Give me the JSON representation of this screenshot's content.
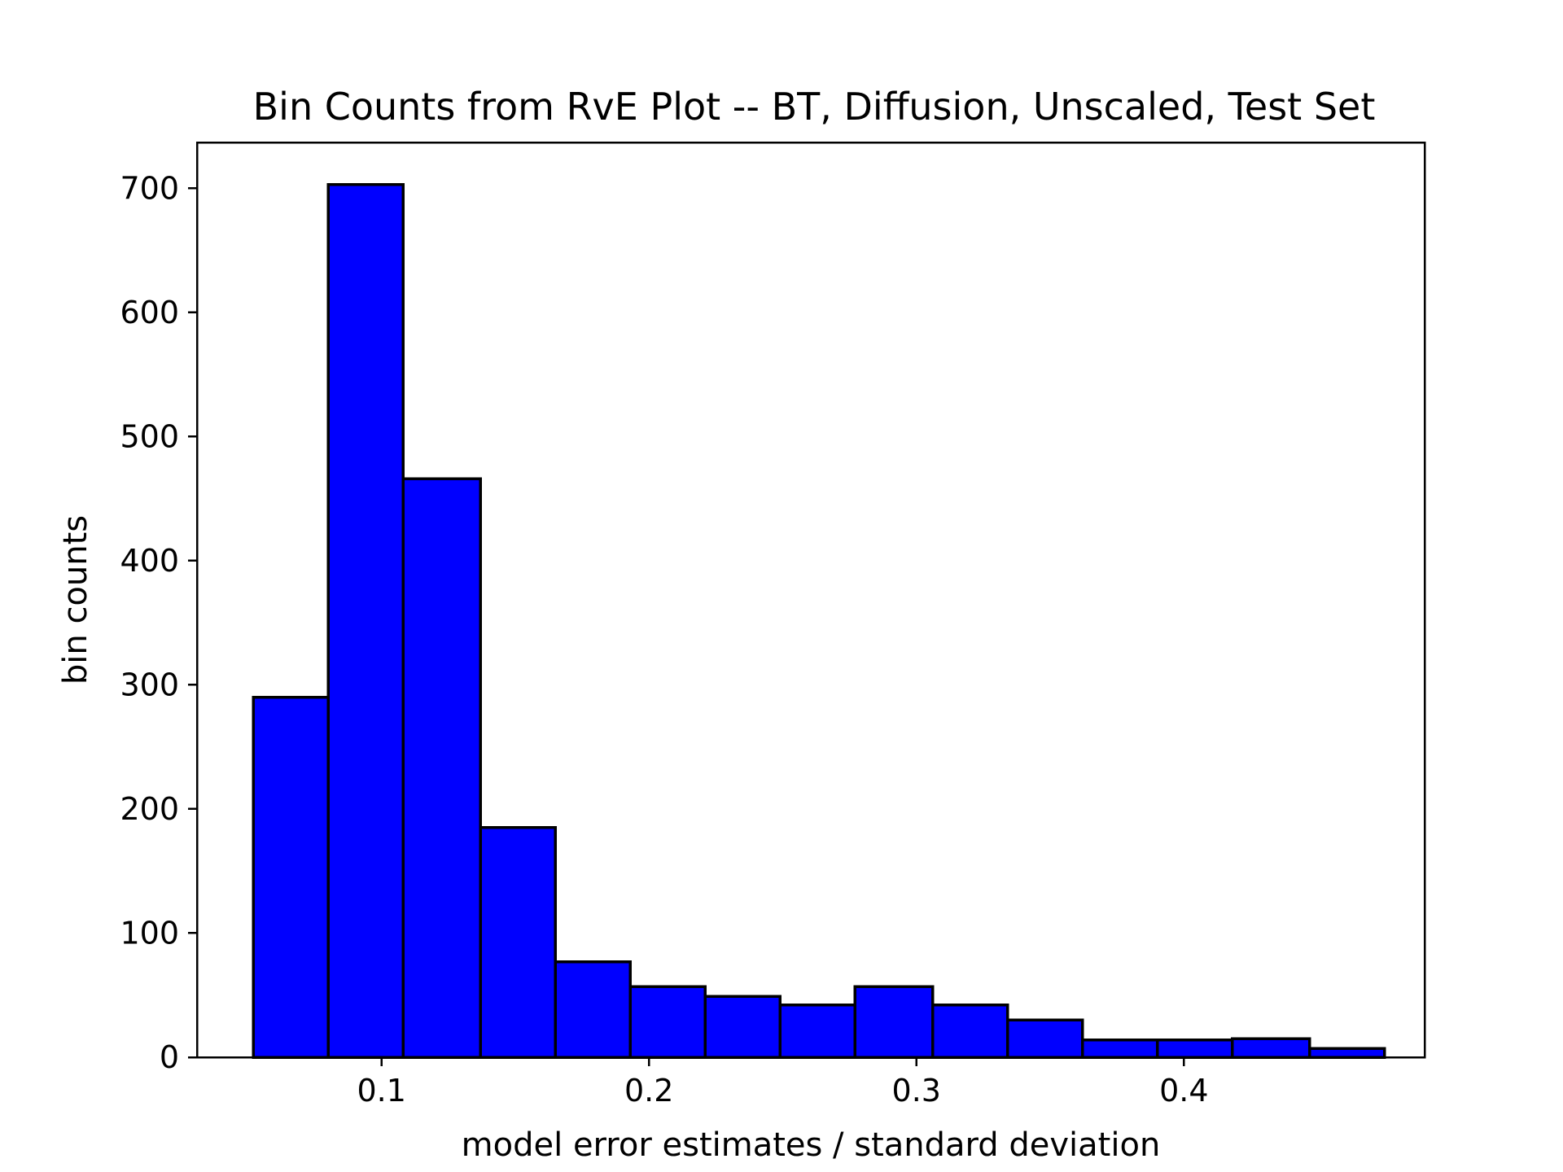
{
  "chart_data": {
    "type": "bar",
    "title": "Bin Counts from RvE Plot -- BT, Diffusion, Unscaled, Test Set",
    "xlabel": "model error estimates / standard deviation",
    "ylabel": "bin counts",
    "xlim": [
      0.031,
      0.49
    ],
    "ylim": [
      0,
      737
    ],
    "xticks": [
      0.1,
      0.2,
      0.3,
      0.4
    ],
    "xtick_labels": [
      "0.1",
      "0.2",
      "0.3",
      "0.4"
    ],
    "yticks": [
      0,
      100,
      200,
      300,
      400,
      500,
      600,
      700
    ],
    "ytick_labels": [
      "0",
      "100",
      "200",
      "300",
      "400",
      "500",
      "600",
      "700"
    ],
    "bar_color": "#0000ff",
    "bar_edge_color": "#000000",
    "grid": false,
    "legend": "none",
    "bins": [
      {
        "x0": 0.052,
        "x1": 0.08,
        "count": 290
      },
      {
        "x0": 0.08,
        "x1": 0.108,
        "count": 703
      },
      {
        "x0": 0.108,
        "x1": 0.137,
        "count": 466
      },
      {
        "x0": 0.137,
        "x1": 0.165,
        "count": 185
      },
      {
        "x0": 0.165,
        "x1": 0.193,
        "count": 77
      },
      {
        "x0": 0.193,
        "x1": 0.221,
        "count": 57
      },
      {
        "x0": 0.221,
        "x1": 0.249,
        "count": 49
      },
      {
        "x0": 0.249,
        "x1": 0.277,
        "count": 42
      },
      {
        "x0": 0.277,
        "x1": 0.306,
        "count": 57
      },
      {
        "x0": 0.306,
        "x1": 0.334,
        "count": 42
      },
      {
        "x0": 0.334,
        "x1": 0.362,
        "count": 30
      },
      {
        "x0": 0.362,
        "x1": 0.39,
        "count": 14
      },
      {
        "x0": 0.39,
        "x1": 0.418,
        "count": 14
      },
      {
        "x0": 0.418,
        "x1": 0.447,
        "count": 15
      },
      {
        "x0": 0.447,
        "x1": 0.475,
        "count": 7
      }
    ]
  }
}
